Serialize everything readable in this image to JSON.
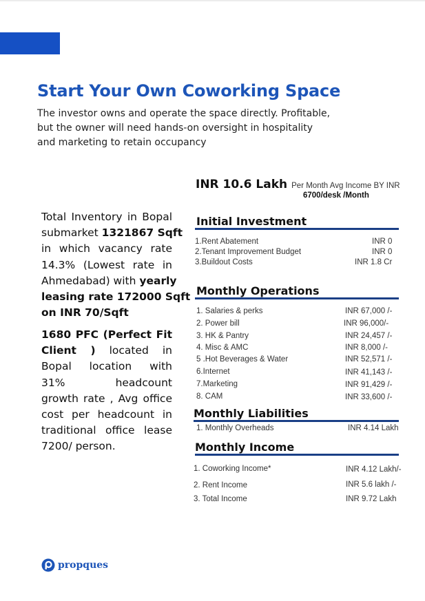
{
  "title": "Start Your Own Coworking Space",
  "subtitle_lines": [
    "The investor owns and operate the space directly. Profitable,",
    "but the owner will need hands-on oversight in hospitality",
    "and marketing to retain occupancy"
  ],
  "summary": {
    "headline_value": "INR 10.6 Lakh",
    "headline_desc": "Per Month Avg  Income BY INR",
    "headline_rate": "6700/desk /Month"
  },
  "inventory_para": {
    "l1": "Total Inventory in Bopal",
    "l2_pre": "submarket ",
    "l2_bold": "1321867 Sqft",
    "l3": "in which vacancy rate",
    "l4": "14.3% (Lowest rate in",
    "l5_pre": "Ahmedabad) with ",
    "l5_bold": "yearly",
    "l6": "leasing rate 172000 Sqft",
    "l7": "on INR 70/Sqft"
  },
  "pfc_para": {
    "l1": "1680 PFC (Perfect Fit",
    "l2_bold": "Client )",
    "l2_rest": " located in",
    "l3": "Bopal location with",
    "l4": "31%            headcount",
    "l5": "growth rate , Avg office",
    "l6": "cost per headcount in",
    "l7": "traditional office lease",
    "l8": "7200/ person."
  },
  "initial_investment": {
    "title": "Initial Investment",
    "items": [
      {
        "label": "1.Rent Abatement",
        "value": "INR 0"
      },
      {
        "label": "2.Tenant Improvement Budget",
        "value": "INR 0"
      },
      {
        "label": "3.Buildout Costs",
        "value": "INR  1.8 Cr"
      }
    ]
  },
  "monthly_operations": {
    "title": "Monthly Operations",
    "items": [
      {
        "label": "1. Salaries & perks",
        "value": "INR  67,000 /-"
      },
      {
        "label": "2. Power bill",
        "value": "INR   96,000/-"
      },
      {
        "label": "3. HK & Pantry",
        "value": "INR   24,457 /-"
      },
      {
        "label": "4. Misc & AMC",
        "value": "INR    8,000  /-"
      },
      {
        "label": "5 .Hot Beverages & Water",
        "value": "INR   52,571  /-"
      },
      {
        "label": "6.Internet",
        "value": "INR   41,143  /-"
      },
      {
        "label": "7.Marketing",
        "value": "INR   91,429  /-"
      },
      {
        "label": "8. CAM",
        "value": "INR    33,600  /-"
      }
    ]
  },
  "monthly_liabilities": {
    "title": "Monthly Liabilities",
    "items": [
      {
        "label": "1.  Monthly Overheads",
        "value": "INR  4.14 Lakh"
      }
    ]
  },
  "monthly_income": {
    "title": "Monthly Income",
    "items": [
      {
        "label": "1. Coworking Income*",
        "value": "INR 4.12 Lakh/-"
      },
      {
        "label": "2. Rent Income",
        "value": "INR 5.6 lakh /-"
      },
      {
        "label": "3. Total Income",
        "value": "INR 9.72 Lakh"
      }
    ]
  },
  "logo": {
    "text": "propques"
  },
  "colors": {
    "accent": "#1550c4",
    "title": "#1d55b8",
    "rule": "#1a3f86"
  }
}
